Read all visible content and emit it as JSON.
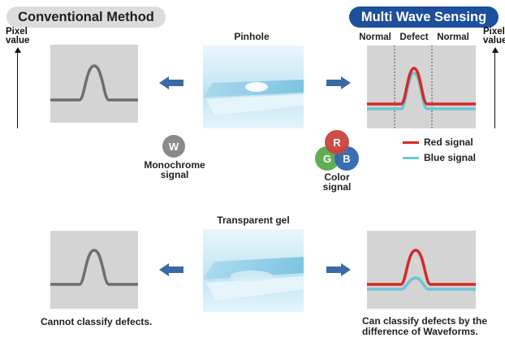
{
  "headers": {
    "conventional": "Conventional Method",
    "multi_wave": "Multi Wave Sensing"
  },
  "axis": {
    "left_line1": "Pixel",
    "left_line2": "value",
    "right_line1": "Pixel",
    "right_line2": "value"
  },
  "regions": {
    "normal_left": "Normal",
    "defect": "Defect",
    "normal_right": "Normal"
  },
  "samples": {
    "pinhole": "Pinhole",
    "transparent_gel": "Transparent gel"
  },
  "monochrome": {
    "letter": "W",
    "line1": "Monochrome",
    "line2": "signal"
  },
  "color_signal": {
    "r": "R",
    "g": "G",
    "b": "B",
    "line1": "Color",
    "line2": "signal"
  },
  "legend": {
    "red": "Red signal",
    "blue": "Blue signal"
  },
  "captions": {
    "cannot": "Cannot classify defects.",
    "can_line1": "Can classify defects by the",
    "can_line2": "difference of Waveforms."
  },
  "colors": {
    "accent_blue": "#1d4f9c",
    "arrow_blue": "#3a6aa5",
    "red_signal": "#d22a2a",
    "blue_signal": "#6fc3d3",
    "mono_signal": "#6e6e6e",
    "circle_r": "#c9453f",
    "circle_g": "#5aa94a",
    "circle_b": "#2f68b1",
    "circle_w": "#8a8a8a"
  },
  "icons": {
    "left_arrow": "arrow-left-icon",
    "right_arrow": "arrow-right-icon"
  }
}
